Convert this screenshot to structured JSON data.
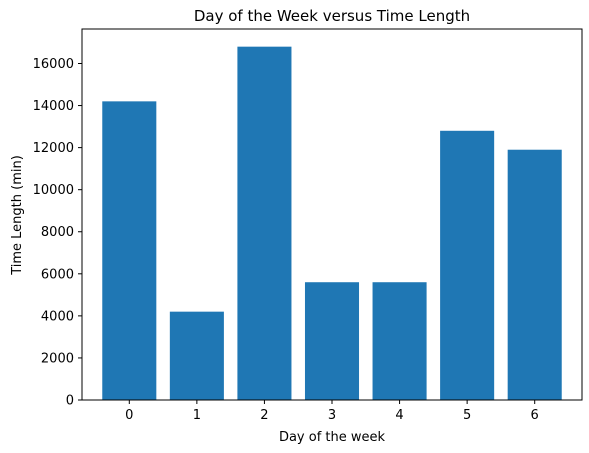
{
  "chart_data": {
    "type": "bar",
    "title": "Day of the Week versus Time Length",
    "xlabel": "Day of the week",
    "ylabel": "Time Length (min)",
    "categories": [
      "0",
      "1",
      "2",
      "3",
      "4",
      "5",
      "6"
    ],
    "values": [
      14200,
      4200,
      16800,
      5600,
      5600,
      12800,
      11900
    ],
    "ylim": [
      0,
      17640
    ],
    "yticks": [
      0,
      2000,
      4000,
      6000,
      8000,
      10000,
      12000,
      14000,
      16000
    ],
    "grid": false,
    "bar_color": "#1f77b4"
  }
}
